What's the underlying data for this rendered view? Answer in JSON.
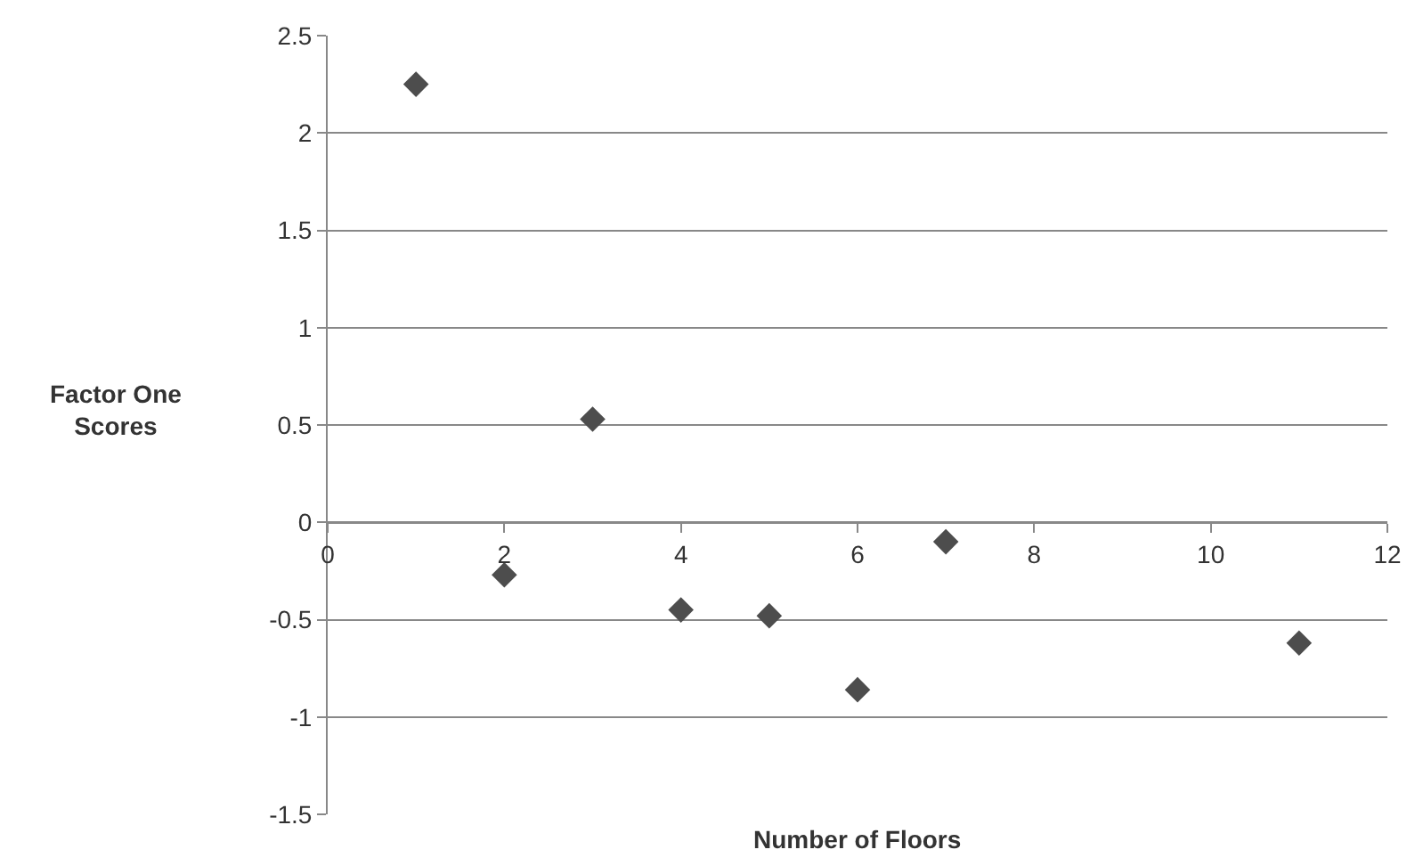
{
  "chart_data": {
    "type": "scatter",
    "xlabel": "Number of Floors",
    "ylabel": "Factor One Scores",
    "x": [
      1,
      2,
      3,
      4,
      5,
      6,
      7,
      11
    ],
    "series": [
      {
        "color": "#4d4d4d",
        "values": [
          2.25,
          -0.27,
          0.53,
          -0.45,
          -0.48,
          -0.86,
          -0.1,
          -0.62
        ]
      }
    ],
    "xlim": [
      0,
      12
    ],
    "xticks": [
      0,
      2,
      4,
      6,
      8,
      10,
      12
    ],
    "ylim": [
      -1.5,
      2.5
    ],
    "yticks": [
      -1.5,
      -1,
      -0.5,
      0,
      0.5,
      1,
      1.5,
      2,
      2.5
    ],
    "grid": "y",
    "marker": "diamond"
  }
}
